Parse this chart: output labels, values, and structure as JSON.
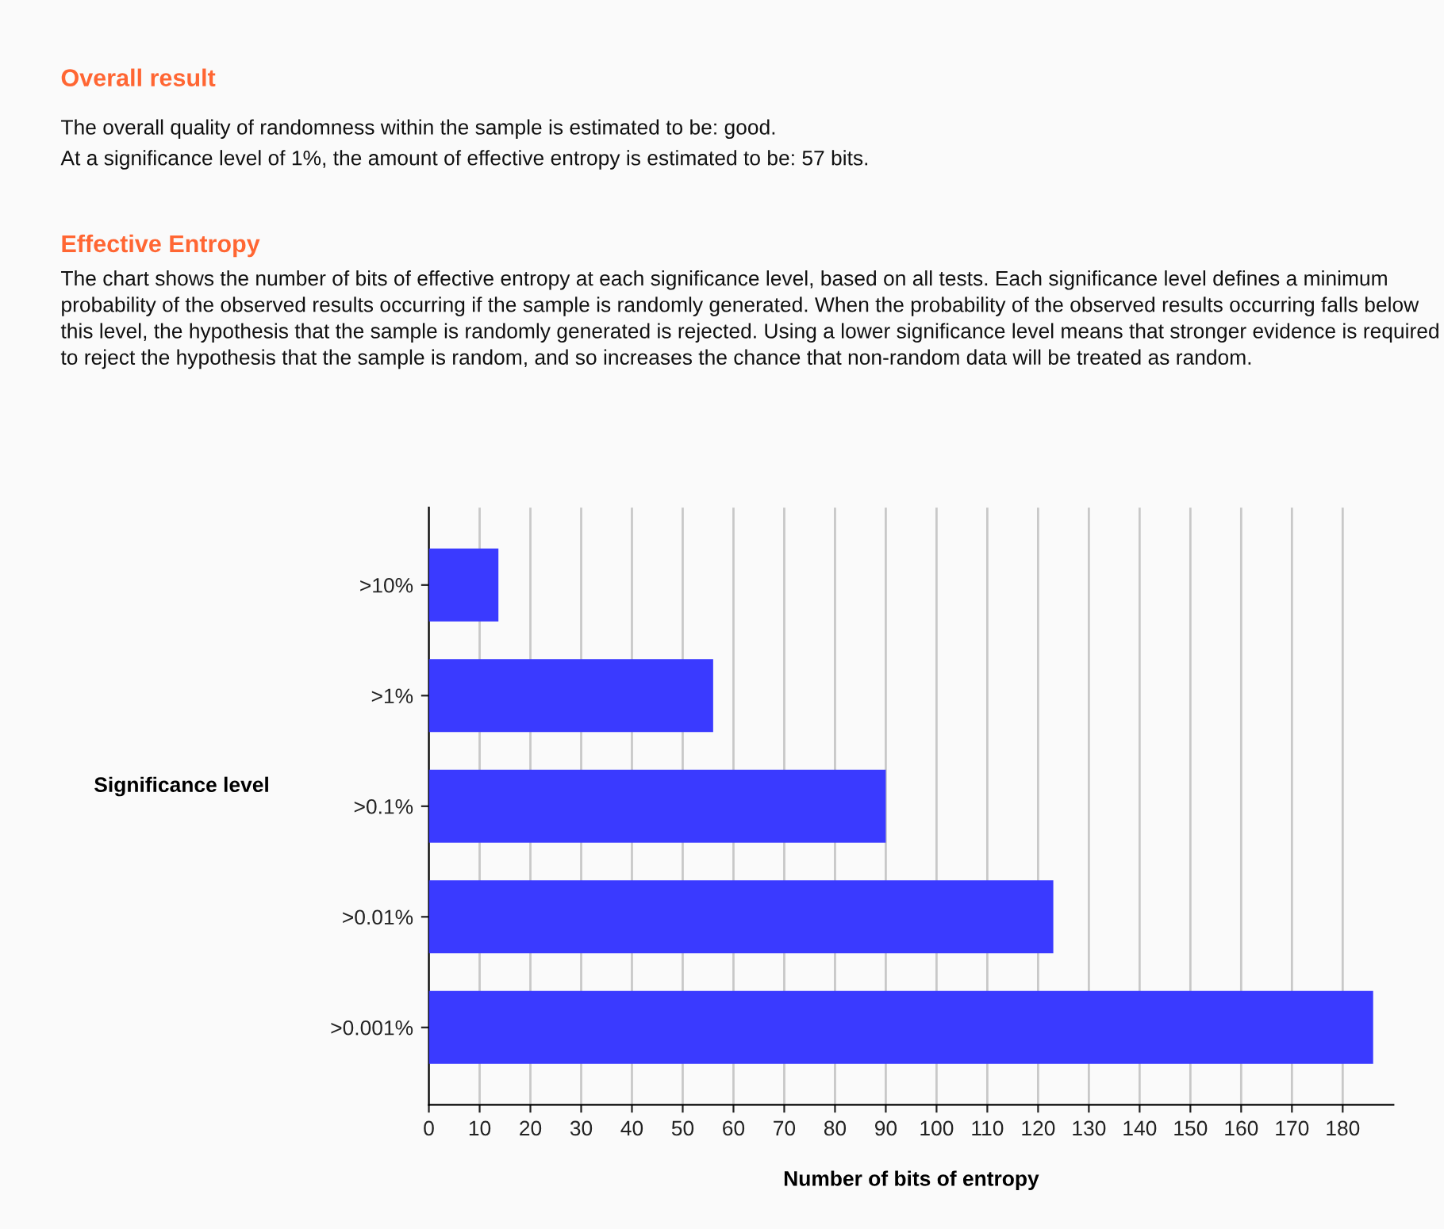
{
  "chart_data": {
    "type": "bar",
    "orientation": "horizontal",
    "title": "Effective Entropy",
    "subtitle": "The chart shows the number of bits of effective entropy at each significance level, based on all tests. Each significance level defines a minimum probability of the observed results occurring if the sample is randomly generated. When the probability of the observed results occurring falls below this level, the hypothesis that the sample is randomly generated is rejected. Using a lower significance level means that stronger evidence is required to reject the hypothesis that the sample is random, and so increases the chance that non-random data will be treated as random.",
    "annotations": [
      "Overall result",
      "The overall quality of randomness within the sample is estimated to be: good.",
      "At a significance level of 1%, the amount of effective entropy is estimated to be: 57 bits."
    ],
    "categories": [
      ">10%",
      ">1%",
      ">0.1%",
      ">0.01%",
      ">0.001%"
    ],
    "values": [
      13.7,
      56,
      90,
      123,
      186
    ],
    "color": "#3a3aff",
    "xlim": [
      0,
      190
    ],
    "xticks": [
      0,
      10,
      20,
      30,
      40,
      50,
      60,
      70,
      80,
      90,
      100,
      110,
      120,
      130,
      140,
      150,
      160,
      170,
      180
    ],
    "xlabel": "Number of bits of entropy",
    "ylabel": "Significance level",
    "grid": "x",
    "legend": false
  }
}
